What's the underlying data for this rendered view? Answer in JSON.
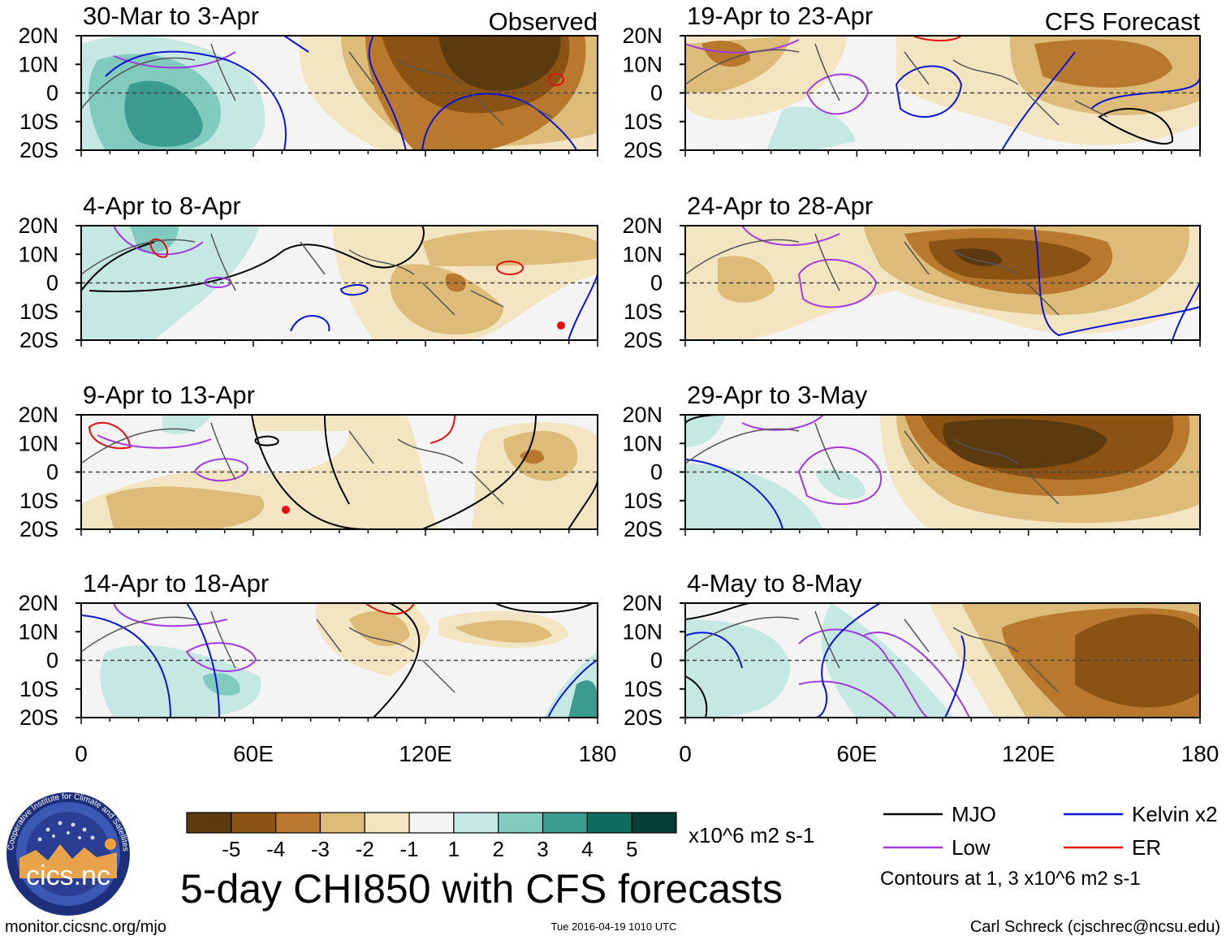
{
  "header": {
    "observed_label": "Observed",
    "forecast_label": "CFS Forecast"
  },
  "chart_data": {
    "type": "heatmap",
    "title": "5-day CHI850 with CFS forecasts",
    "variable": "CHI850",
    "units": "x10^6 m2 s-1",
    "x_ticks": [
      "0",
      "60E",
      "120E",
      "180"
    ],
    "x_range": [
      0,
      180
    ],
    "y_ticks": [
      "20N",
      "10N",
      "0",
      "10S",
      "20S"
    ],
    "y_range": [
      -20,
      20
    ],
    "panels": [
      {
        "id": "p1",
        "column": "observed",
        "label": "30-Mar to 3-Apr"
      },
      {
        "id": "p2",
        "column": "observed",
        "label": "4-Apr to 8-Apr"
      },
      {
        "id": "p3",
        "column": "observed",
        "label": "9-Apr to 13-Apr"
      },
      {
        "id": "p4",
        "column": "observed",
        "label": "14-Apr to 18-Apr"
      },
      {
        "id": "p5",
        "column": "forecast",
        "label": "19-Apr to 23-Apr"
      },
      {
        "id": "p6",
        "column": "forecast",
        "label": "24-Apr to 28-Apr"
      },
      {
        "id": "p7",
        "column": "forecast",
        "label": "29-Apr to 3-May"
      },
      {
        "id": "p8",
        "column": "forecast",
        "label": "4-May to 8-May"
      }
    ],
    "colorbar": {
      "labels": [
        "-5",
        "-4",
        "-3",
        "-2",
        "-1",
        "1",
        "2",
        "3",
        "4",
        "5"
      ],
      "colors": [
        "#5c3a10",
        "#8a5213",
        "#b8782e",
        "#dcbc78",
        "#f4e5c2",
        "#f4f4f4",
        "#c5e8e2",
        "#80cabe",
        "#3a9b8f",
        "#116c60",
        "#063d34"
      ]
    },
    "legend": [
      {
        "name": "MJO",
        "color": "#000000"
      },
      {
        "name": "Kelvin x2",
        "color": "#0a14d6"
      },
      {
        "name": "Low",
        "color": "#a13be0"
      },
      {
        "name": "ER",
        "color": "#e01010"
      }
    ],
    "contour_note": "Contours at 1, 3 x10^6 m2 s-1"
  },
  "footer": {
    "left": "monitor.cicsnc.org/mjo",
    "center": "Tue 2016-04-19 1010 UTC",
    "right": "Carl Schreck (cjschrec@ncsu.edu)"
  },
  "logo": {
    "ring_text": "Cooperative Institute for Climate and Satellites",
    "name": "cics.nc"
  }
}
